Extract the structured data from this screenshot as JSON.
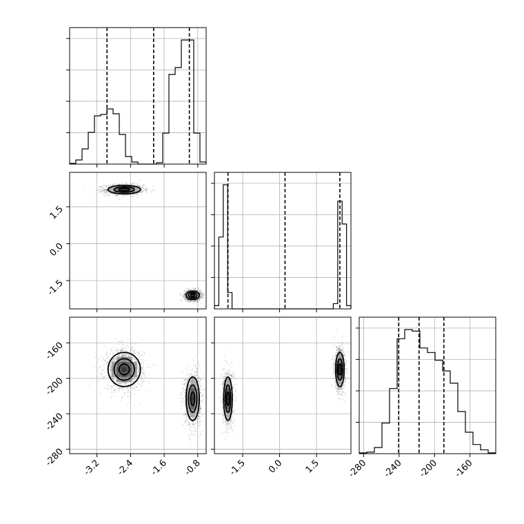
{
  "chart_data": {
    "type": "corner",
    "parameters": [
      {
        "id": "p0",
        "ticks": [
          "-3.2",
          "-2.4",
          "-1.6",
          "-0.8"
        ],
        "tick_values": [
          -3.2,
          -2.4,
          -1.6,
          -0.8
        ],
        "range": [
          -3.85,
          -0.6
        ],
        "quantiles": [
          -2.96,
          -1.85,
          -1.0
        ],
        "hist_edges": [
          -3.85,
          -0.6
        ],
        "hist_counts": [
          1,
          6,
          22,
          46,
          70,
          72,
          80,
          73,
          43,
          11,
          3,
          0,
          0,
          0,
          2,
          45,
          130,
          140,
          180,
          180,
          45,
          3
        ]
      },
      {
        "id": "p1",
        "ticks": [
          "-1.5",
          "0.0",
          "1.5"
        ],
        "tick_values": [
          -1.5,
          0.0,
          1.5
        ],
        "range": [
          -2.65,
          2.9
        ],
        "quantiles": [
          -2.1,
          0.22,
          2.45
        ],
        "hist_edges": [
          -2.65,
          2.9
        ],
        "hist_counts": [
          5,
          110,
          190,
          25,
          0,
          0,
          0,
          0,
          0,
          0,
          0,
          0,
          0,
          0,
          0,
          0,
          0,
          0,
          0,
          0,
          0,
          0,
          0,
          0,
          0,
          0,
          0,
          8,
          165,
          130,
          5
        ]
      },
      {
        "id": "p2",
        "ticks": [
          "-280",
          "-240",
          "-200",
          "-160"
        ],
        "tick_values": [
          -280,
          -240,
          -200,
          -160
        ],
        "range": [
          -285,
          -131
        ],
        "quantiles": [
          -240.5,
          -217.5,
          -189.5
        ],
        "hist_edges": [
          -285,
          -131
        ],
        "hist_counts": [
          1,
          2,
          8,
          40,
          85,
          150,
          162,
          160,
          138,
          132,
          122,
          108,
          92,
          55,
          28,
          12,
          5,
          1
        ]
      }
    ],
    "pair_clusters": {
      "p1_vs_p0": [
        {
          "center": [
            -2.55,
            2.2
          ],
          "sd": [
            0.22,
            0.1
          ],
          "weight": 0.5
        },
        {
          "center": [
            -0.92,
            -2.1
          ],
          "sd": [
            0.09,
            0.1
          ],
          "weight": 0.5
        }
      ],
      "p2_vs_p0": [
        {
          "center": [
            -2.55,
            -190
          ],
          "sd": [
            0.22,
            11
          ],
          "weight": 0.5
        },
        {
          "center": [
            -0.92,
            -223
          ],
          "sd": [
            0.09,
            14
          ],
          "weight": 0.5
        }
      ],
      "p2_vs_p1": [
        {
          "center": [
            -2.1,
            -223
          ],
          "sd": [
            0.1,
            14
          ],
          "weight": 0.5
        },
        {
          "center": [
            2.45,
            -190
          ],
          "sd": [
            0.1,
            11
          ],
          "weight": 0.5
        }
      ]
    },
    "grid": true,
    "xlabel": "",
    "ylabel": "",
    "title": ""
  }
}
